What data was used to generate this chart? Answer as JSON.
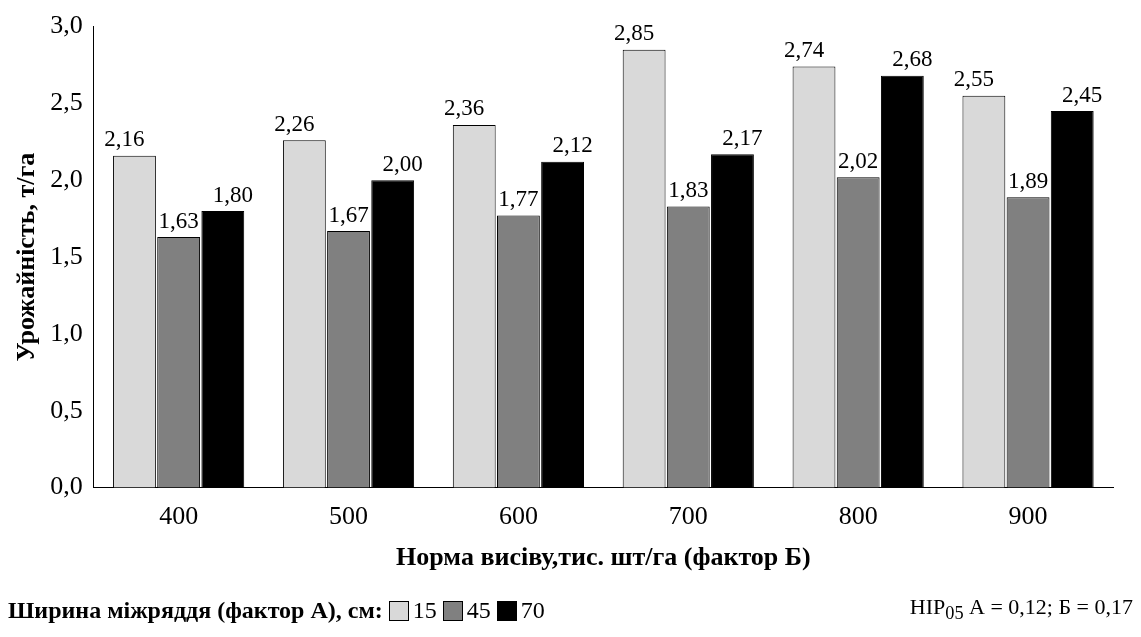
{
  "chart_data": {
    "type": "bar",
    "xlabel": "Норма висіву,тис. шт/га (фактор Б)",
    "ylabel": "Урожайність, т/га",
    "categories": [
      "400",
      "500",
      "600",
      "700",
      "800",
      "900"
    ],
    "series": [
      {
        "name": "15",
        "color": "#d9d9d9",
        "values": [
          2.16,
          2.26,
          2.36,
          2.85,
          2.74,
          2.55
        ],
        "value_labels": [
          "2,16",
          "2,26",
          "2,36",
          "2,85",
          "2,74",
          "2,55"
        ]
      },
      {
        "name": "45",
        "color": "#808080",
        "values": [
          1.63,
          1.67,
          1.77,
          1.83,
          2.02,
          1.89
        ],
        "value_labels": [
          "1,63",
          "1,67",
          "1,77",
          "1,83",
          "2,02",
          "1,89"
        ]
      },
      {
        "name": "70",
        "color": "#000000",
        "values": [
          1.8,
          2.0,
          2.12,
          2.17,
          2.68,
          2.45
        ],
        "value_labels": [
          "1,80",
          "2,00",
          "2,12",
          "2,17",
          "2,68",
          "2,45"
        ]
      }
    ],
    "ylim": [
      0,
      3
    ],
    "yticks": [
      {
        "value": 0,
        "label": "0,0"
      },
      {
        "value": 0.5,
        "label": "0,5"
      },
      {
        "value": 1,
        "label": "1,0"
      },
      {
        "value": 1.5,
        "label": "1,5"
      },
      {
        "value": 2,
        "label": "2,0"
      },
      {
        "value": 2.5,
        "label": "2,5"
      },
      {
        "value": 3,
        "label": "3,0"
      }
    ],
    "grid": false,
    "legend": "bottom",
    "legend_title": "Ширина міжряддя (фактор А), см:",
    "annotations": [
      "НІР$_{05}$ А = 0,12; Б = 0,17"
    ]
  }
}
